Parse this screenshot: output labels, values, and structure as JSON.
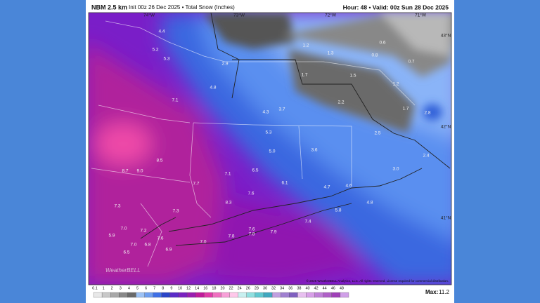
{
  "header": {
    "title": "NBM 2.5 km",
    "subtitle": "Init 00z 26 Dec 2025 • Total Snow (Inches)",
    "valid": "Hour: 48 • Valid: 00z Sun 28 Dec 2025"
  },
  "graticule": [
    "74°W",
    "73°W",
    "72°W",
    "71°W",
    "43°N",
    "42°N",
    "41°N"
  ],
  "map_labels": [
    "4.4",
    "5.2",
    "5.3",
    "2.9",
    "4.8",
    "7.1",
    "4.3",
    "3.7",
    "5.3",
    "5.0",
    "3.6",
    "8.7",
    "9.0",
    "8.5",
    "7.1",
    "6.5",
    "7.7",
    "6.1",
    "4.7",
    "4.6",
    "7.6",
    "8.3",
    "7.3",
    "4.8",
    "5.8",
    "7.3",
    "7.4",
    "7.0",
    "7.2",
    "5.9",
    "7.6",
    "7.9",
    "7.8",
    "7.8",
    "7.6",
    "7.0",
    "7.0",
    "6.8",
    "6.5",
    "6.9",
    "1.2",
    "1.3",
    "0.8",
    "0.6",
    "0.7",
    "1.7",
    "1.5",
    "1.2",
    "1.7",
    "2.5",
    "2.8",
    "2.4",
    "3.0",
    "2.2"
  ],
  "logo": "WeatherBELL",
  "copyright": "© 2025 WeatherBELL Analytics, LLC. All rights reserved. License required for commercial distribution.",
  "colorbar": {
    "labels": [
      "0.1",
      "1",
      "2",
      "3",
      "4",
      "5",
      "6",
      "7",
      "8",
      "9",
      "10",
      "12",
      "14",
      "16",
      "18",
      "20",
      "22",
      "24",
      "26",
      "28",
      "30",
      "32",
      "34",
      "36",
      "38",
      "40",
      "42",
      "44",
      "46",
      "48"
    ],
    "colors": [
      "#e8e8e8",
      "#c8c8c8",
      "#a8a8a8",
      "#888888",
      "#6a6a6a",
      "#9ec3f5",
      "#6f9ff0",
      "#3f70e6",
      "#2a45c8",
      "#5a2cc8",
      "#7a22c0",
      "#9a1eb0",
      "#c01c9a",
      "#e03ca8",
      "#f070c0",
      "#f8a0d8",
      "#ffc8ea",
      "#c8f0f0",
      "#90e0e0",
      "#60c8d0",
      "#40a8c0",
      "#c0a0e0",
      "#a080d0",
      "#8060c0",
      "#e8c0f0",
      "#d8a0e8",
      "#c080d8",
      "#b060c8",
      "#a040b8",
      "#d0a0e8"
    ]
  },
  "max": {
    "label": "Max:",
    "value": "11.2"
  }
}
